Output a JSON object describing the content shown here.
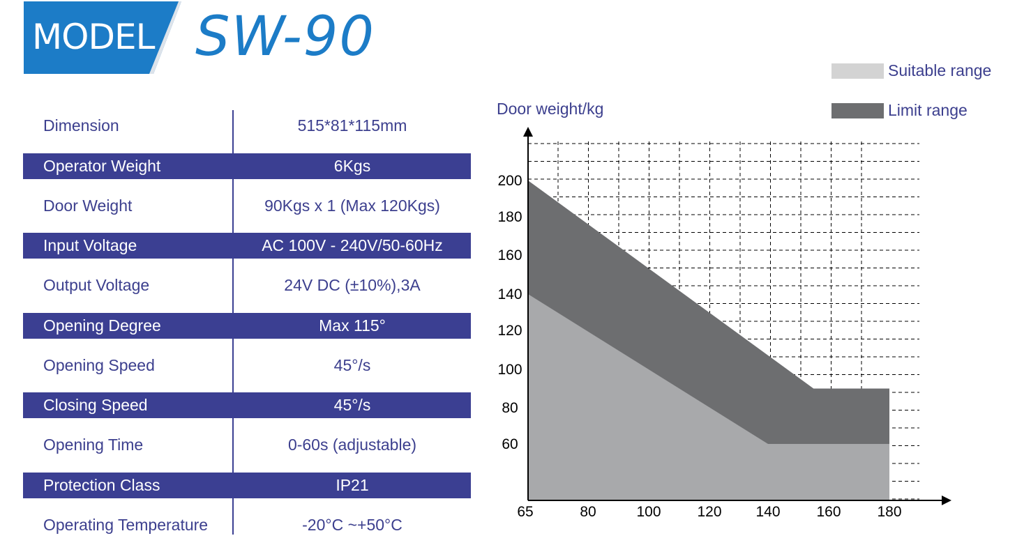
{
  "header": {
    "badge_text": "MODEL",
    "model": "SW-90"
  },
  "specs": [
    {
      "label": "Dimension",
      "value": "515*81*115mm",
      "dark": false
    },
    {
      "label": "Operator Weight",
      "value": "6Kgs",
      "dark": true
    },
    {
      "label": "Door Weight",
      "value": "90Kgs x 1 (Max 120Kgs)",
      "dark": false
    },
    {
      "label": "Input Voltage",
      "value": "AC 100V - 240V/50-60Hz",
      "dark": true
    },
    {
      "label": "Output Voltage",
      "value": "24V DC (±10%),3A",
      "dark": false
    },
    {
      "label": "Opening Degree",
      "value": "Max 115°",
      "dark": true
    },
    {
      "label": "Opening Speed",
      "value": "45°/s",
      "dark": false
    },
    {
      "label": "Closing Speed",
      "value": "45°/s",
      "dark": true
    },
    {
      "label": "Opening Time",
      "value": "0-60s (adjustable)",
      "dark": false
    },
    {
      "label": "Protection Class",
      "value": "IP21",
      "dark": true
    },
    {
      "label": "Operating Temperature",
      "value": "-20°C ~+50°C",
      "dark": false
    }
  ],
  "colors": {
    "brand_blue": "#1c7cc7",
    "row_dark": "#3b3f92",
    "text": "#3c3f8e",
    "suitable": "#a8a9ab",
    "limit": "#6d6e70"
  },
  "chart_data": {
    "type": "area",
    "ylabel": "Door weight/kg",
    "xlabel": "",
    "x_ticks": [
      65,
      80,
      100,
      120,
      140,
      160,
      180
    ],
    "y_ticks": [
      60,
      80,
      100,
      120,
      140,
      160,
      180,
      200
    ],
    "grid": true,
    "legend_position": "top-right",
    "series": [
      {
        "name": "Suitable range",
        "color": "#d3d3d3",
        "points": [
          [
            65,
            140
          ],
          [
            140,
            60
          ],
          [
            180,
            60
          ]
        ]
      },
      {
        "name": "Limit range",
        "color": "#6d6e70",
        "points": [
          [
            65,
            200
          ],
          [
            155,
            90
          ],
          [
            180,
            90
          ]
        ]
      }
    ]
  }
}
